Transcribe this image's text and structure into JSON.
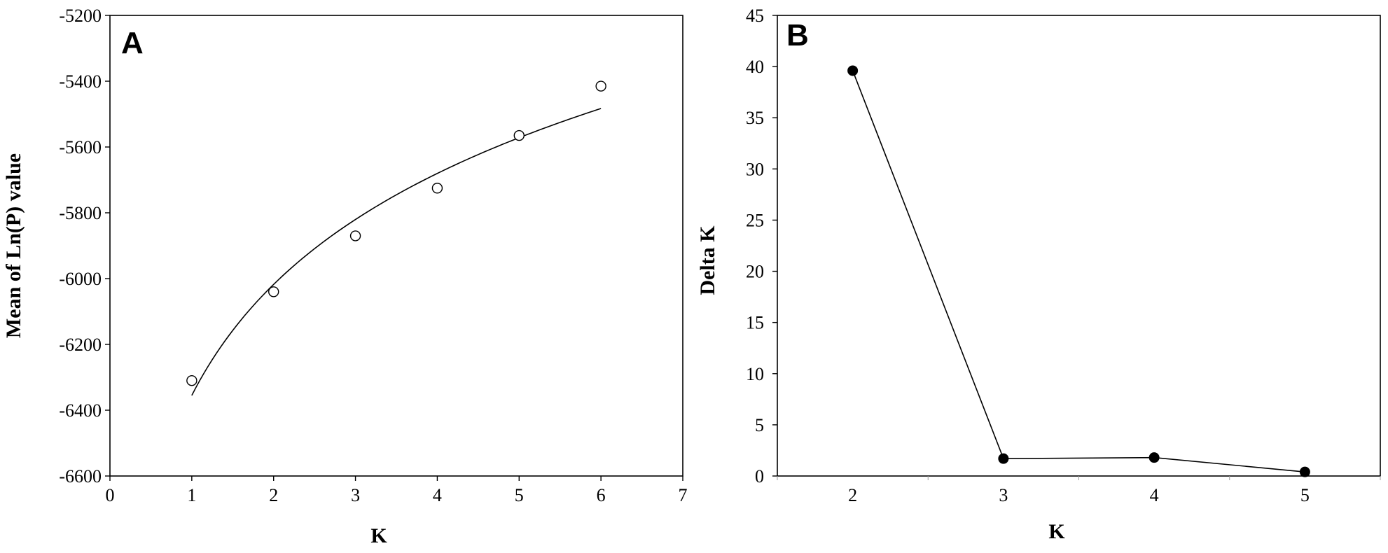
{
  "chart_data": [
    {
      "panel_label": "A",
      "type": "scatter",
      "title": "",
      "xlabel": "K",
      "ylabel": "Mean of Ln(P) value",
      "xlim": [
        0,
        7
      ],
      "ylim": [
        -6600,
        -5200
      ],
      "xticks": [
        "0",
        "1",
        "2",
        "3",
        "4",
        "5",
        "6",
        "7"
      ],
      "yticks": [
        "-5200",
        "-5400",
        "-5600",
        "-5800",
        "-6000",
        "-6200",
        "-6400",
        "-6600"
      ],
      "marker": "open-circle",
      "x": [
        1,
        2,
        3,
        4,
        5,
        6
      ],
      "y": [
        -6310,
        -6040,
        -5870,
        -5725,
        -5565,
        -5415
      ],
      "trendline": {
        "type": "logarithmic",
        "x_range": [
          1,
          6
        ],
        "y_at_x_start": -6355,
        "y_at_x_end": -5483
      },
      "grid": false,
      "legend": "none"
    },
    {
      "panel_label": "B",
      "type": "line",
      "title": "",
      "xlabel": "K",
      "ylabel": "Delta K",
      "categories": [
        "2",
        "3",
        "4",
        "5"
      ],
      "ylim": [
        0,
        45
      ],
      "yticks": [
        "45",
        "40",
        "35",
        "30",
        "25",
        "20",
        "15",
        "10",
        "5",
        "0"
      ],
      "marker": "filled-circle",
      "values": [
        39.6,
        1.7,
        1.8,
        0.4
      ],
      "grid": false,
      "legend": "none"
    }
  ]
}
